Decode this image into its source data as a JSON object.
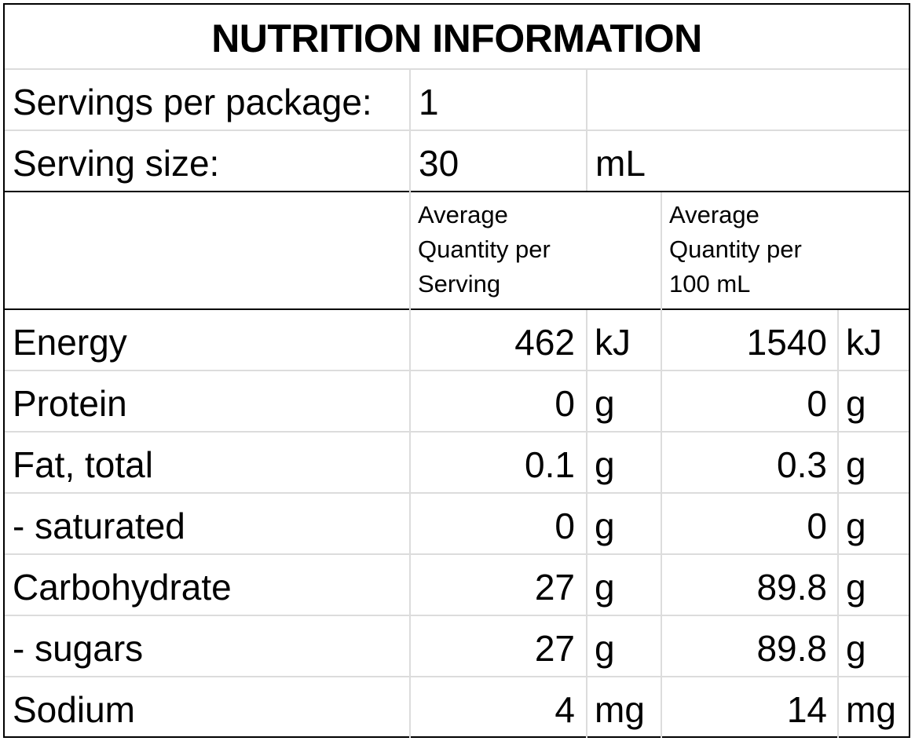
{
  "title": "NUTRITION INFORMATION",
  "servings": {
    "per_package_label": "Servings per package:",
    "per_package_value": "1",
    "size_label": "Serving size:",
    "size_value": "30",
    "size_unit": "mL"
  },
  "columns": {
    "per_serving_header": "Average Quantity per Serving",
    "per_100_header": "Average Quantity per 100 mL"
  },
  "rows": [
    {
      "name": "Energy",
      "serving_value": "462",
      "serving_unit": "kJ",
      "per100_value": "1540",
      "per100_unit": "kJ"
    },
    {
      "name": "Protein",
      "serving_value": "0",
      "serving_unit": "g",
      "per100_value": "0",
      "per100_unit": "g"
    },
    {
      "name": "Fat, total",
      "serving_value": "0.1",
      "serving_unit": "g",
      "per100_value": "0.3",
      "per100_unit": "g"
    },
    {
      "name": "- saturated",
      "serving_value": "0",
      "serving_unit": "g",
      "per100_value": "0",
      "per100_unit": "g"
    },
    {
      "name": "Carbohydrate",
      "serving_value": "27",
      "serving_unit": "g",
      "per100_value": "89.8",
      "per100_unit": "g"
    },
    {
      "name": "- sugars",
      "serving_value": "27",
      "serving_unit": "g",
      "per100_value": "89.8",
      "per100_unit": "g"
    },
    {
      "name": "Sodium",
      "serving_value": "4",
      "serving_unit": "mg",
      "per100_value": "14",
      "per100_unit": "mg"
    }
  ]
}
